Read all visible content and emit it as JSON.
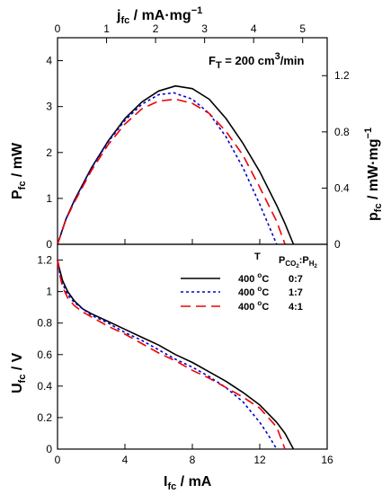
{
  "chart_data": [
    {
      "type": "line",
      "panel": "top",
      "x_top_axis": {
        "label_main": "j",
        "label_sub": "fc",
        "label_unit": " / mA·mg",
        "label_sup": "−1",
        "ticks": [
          0,
          1,
          2,
          3,
          4,
          5
        ],
        "range": [
          0,
          5.5
        ]
      },
      "x_range": [
        0,
        16
      ],
      "ylabel": {
        "main": "P",
        "sub": "fc",
        "unit": " / mW"
      },
      "ylim": [
        0,
        4.5
      ],
      "yticks": [
        0,
        1,
        2,
        3,
        4
      ],
      "y_right_axis": {
        "label_main": "p",
        "label_sub": "fc",
        "label_unit": " / mW·mg",
        "label_sup": "−1",
        "ticks": [
          "0",
          "0.4",
          "0.8",
          "1.2"
        ],
        "tick_values": [
          0,
          0.4,
          0.8,
          1.2
        ],
        "range": [
          0,
          1.47
        ]
      },
      "annotation": {
        "main": "F",
        "sub": "T",
        "rest": " = 200 cm",
        "sup": "3",
        "tail": "/min"
      },
      "series": [
        {
          "style": "solid",
          "color": "#000000",
          "x": [
            0,
            0.5,
            1,
            2,
            3,
            4,
            5,
            6,
            7,
            8,
            9,
            10,
            11,
            12,
            13,
            13.5,
            14
          ],
          "y": [
            0,
            0.55,
            0.96,
            1.66,
            2.25,
            2.74,
            3.1,
            3.34,
            3.45,
            3.39,
            3.16,
            2.74,
            2.2,
            1.58,
            0.85,
            0.45,
            0
          ]
        },
        {
          "style": "dotted",
          "color": "#0000cc",
          "x": [
            0,
            0.5,
            1,
            2,
            3,
            4,
            5,
            6,
            6.9,
            8,
            9,
            10,
            11,
            12,
            12.6,
            13
          ],
          "y": [
            0,
            0.55,
            0.95,
            1.65,
            2.23,
            2.7,
            3.05,
            3.26,
            3.3,
            3.16,
            2.85,
            2.34,
            1.67,
            0.87,
            0.35,
            0
          ]
        },
        {
          "style": "dashed",
          "color": "#ee0000",
          "x": [
            0,
            0.5,
            1,
            2,
            3,
            4,
            5,
            6,
            7,
            8,
            9,
            10,
            11,
            12,
            13,
            13.5
          ],
          "y": [
            0,
            0.54,
            0.92,
            1.6,
            2.17,
            2.62,
            2.95,
            3.12,
            3.16,
            3.07,
            2.85,
            2.46,
            1.94,
            1.24,
            0.5,
            0
          ]
        }
      ]
    },
    {
      "type": "line",
      "panel": "bottom",
      "xlabel": {
        "main": "I",
        "sub": "fc",
        "unit": " / mA"
      },
      "xlim": [
        0,
        16
      ],
      "xticks": [
        0,
        4,
        8,
        12,
        16
      ],
      "ylabel": {
        "main": "U",
        "sub": "fc",
        "unit": " / V"
      },
      "ylim": [
        0,
        1.3
      ],
      "yticks": [
        "0",
        "0.2",
        "0.4",
        "0.6",
        "0.8",
        "1",
        "1.2"
      ],
      "ytick_values": [
        0,
        0.2,
        0.4,
        0.6,
        0.8,
        1.0,
        1.2
      ],
      "legend": {
        "header_T": "T",
        "header_ratio": {
          "p": "P",
          "s1": "CO",
          "s2": "2",
          "colon": ":P",
          "s3": "H",
          "s4": "2"
        },
        "entries": [
          {
            "temp": "400 ",
            "deg": "o",
            "unit": "C",
            "ratio": "0:7",
            "style": "solid",
            "color": "#000000"
          },
          {
            "temp": "400 ",
            "deg": "o",
            "unit": "C",
            "ratio": "1:7",
            "style": "dotted",
            "color": "#0000cc"
          },
          {
            "temp": "400 ",
            "deg": "o",
            "unit": "C",
            "ratio": "4:1",
            "style": "dashed",
            "color": "#ee0000"
          }
        ]
      },
      "series": [
        {
          "style": "solid",
          "color": "#000000",
          "x": [
            0,
            0.1,
            0.3,
            0.6,
            1,
            1.5,
            2,
            3,
            4,
            5,
            6,
            7,
            8,
            9,
            10,
            11,
            12,
            13,
            13.5,
            14
          ],
          "y": [
            1.2,
            1.15,
            1.07,
            1.0,
            0.94,
            0.89,
            0.86,
            0.81,
            0.76,
            0.71,
            0.66,
            0.6,
            0.55,
            0.49,
            0.43,
            0.36,
            0.28,
            0.17,
            0.1,
            0
          ]
        },
        {
          "style": "dotted",
          "color": "#0000cc",
          "x": [
            0,
            0.1,
            0.3,
            0.6,
            1,
            1.5,
            2,
            3,
            4,
            5,
            6,
            7,
            8,
            9,
            10,
            11,
            12,
            12.5,
            13
          ],
          "y": [
            1.2,
            1.13,
            1.05,
            0.98,
            0.93,
            0.89,
            0.85,
            0.8,
            0.74,
            0.69,
            0.63,
            0.57,
            0.52,
            0.46,
            0.39,
            0.3,
            0.17,
            0.09,
            0
          ]
        },
        {
          "style": "dashed",
          "color": "#ee0000",
          "x": [
            0,
            0.1,
            0.3,
            0.6,
            1,
            1.5,
            2,
            3,
            4,
            5,
            6,
            7,
            8,
            9,
            10,
            11,
            12,
            13,
            13.5
          ],
          "y": [
            1.2,
            1.12,
            1.03,
            0.96,
            0.91,
            0.87,
            0.84,
            0.78,
            0.73,
            0.67,
            0.61,
            0.56,
            0.5,
            0.45,
            0.39,
            0.33,
            0.26,
            0.14,
            0
          ]
        }
      ]
    }
  ]
}
